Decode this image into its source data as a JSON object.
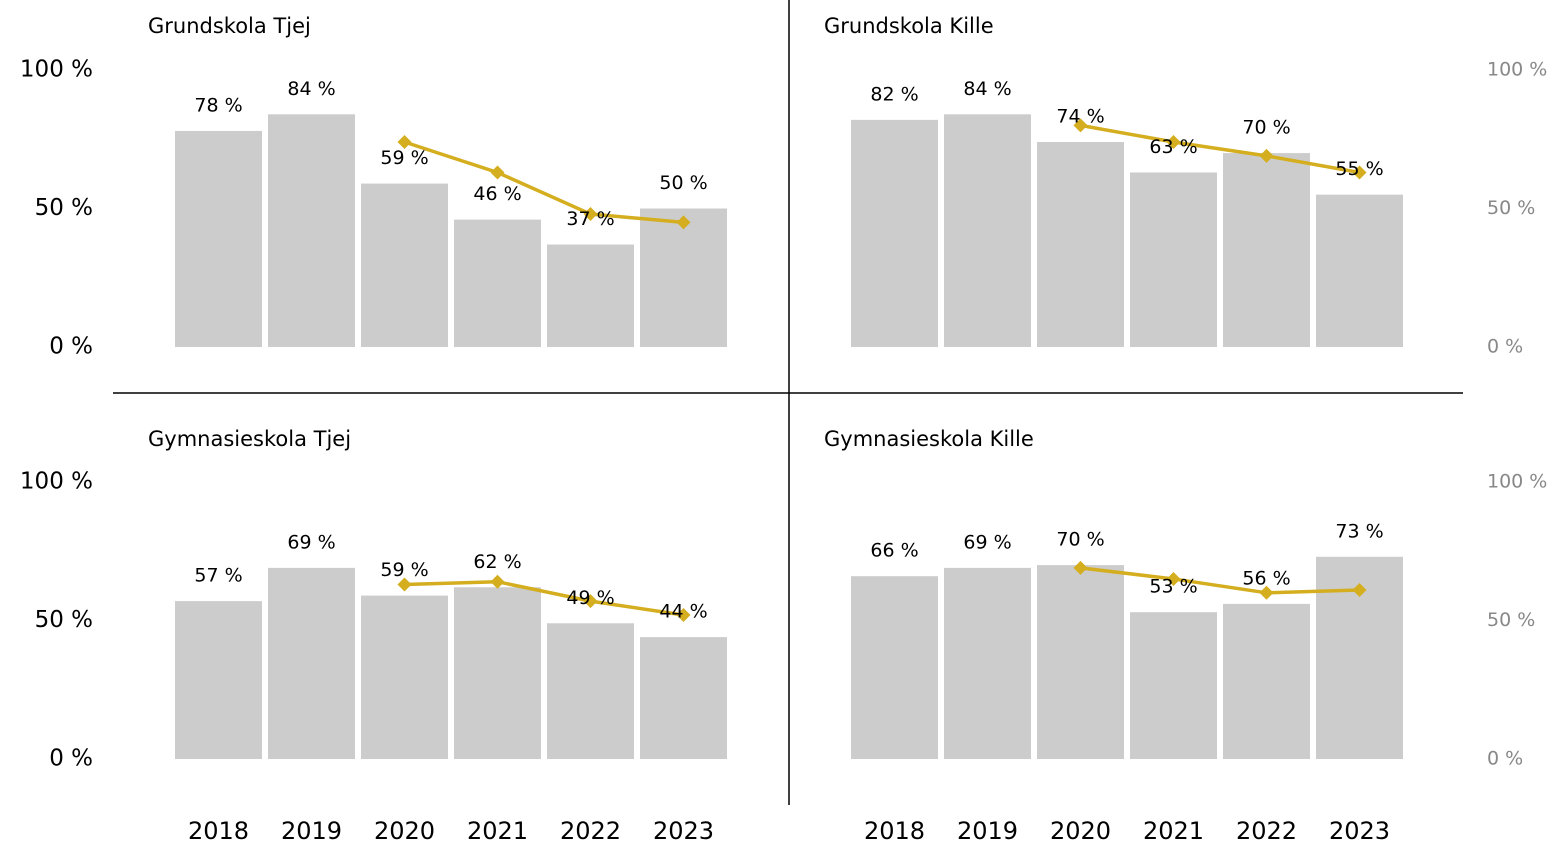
{
  "chart_data": [
    {
      "type": "bar",
      "title": "Grundskola Tjej",
      "values": [
        78,
        84,
        59,
        46,
        37,
        50
      ],
      "value_labels": [
        "78 %",
        "84 %",
        "59 %",
        "46 %",
        "37 %",
        "50 %"
      ],
      "color": "#cccccc",
      "line_values": [
        null,
        null,
        74,
        63,
        48,
        45
      ],
      "line_color": "#d4ae1e",
      "ylim": [
        0,
        100
      ],
      "yticks": [
        {
          "value": 0,
          "label": "0 %"
        },
        {
          "value": 50,
          "label": "50 %"
        },
        {
          "value": 100,
          "label": "100 %"
        }
      ],
      "yaxis_position": "left",
      "ytick_color": "#000000"
    },
    {
      "type": "bar",
      "title": "Grundskola Kille",
      "values": [
        82,
        84,
        74,
        63,
        70,
        55
      ],
      "value_labels": [
        "82 %",
        "84 %",
        "74 %",
        "63 %",
        "70 %",
        "55 %"
      ],
      "color": "#cccccc",
      "line_values": [
        null,
        null,
        80,
        74,
        69,
        63
      ],
      "line_color": "#d4ae1e",
      "ylim": [
        0,
        100
      ],
      "yticks": [
        {
          "value": 0,
          "label": "0 %"
        },
        {
          "value": 50,
          "label": "50 %"
        },
        {
          "value": 100,
          "label": "100 %"
        }
      ],
      "yaxis_position": "right",
      "ytick_color": "#888888"
    },
    {
      "type": "bar",
      "title": "Gymnasieskola Tjej",
      "categories": [
        "2018",
        "2019",
        "2020",
        "2021",
        "2022",
        "2023"
      ],
      "values": [
        57,
        69,
        59,
        62,
        49,
        44
      ],
      "value_labels": [
        "57 %",
        "69 %",
        "59 %",
        "62 %",
        "49 %",
        "44 %"
      ],
      "color": "#cccccc",
      "line_values": [
        null,
        null,
        63,
        64,
        57,
        52
      ],
      "line_color": "#d4ae1e",
      "ylim": [
        0,
        100
      ],
      "yticks": [
        {
          "value": 0,
          "label": "0 %"
        },
        {
          "value": 50,
          "label": "50 %"
        },
        {
          "value": 100,
          "label": "100 %"
        }
      ],
      "yaxis_position": "left",
      "ytick_color": "#000000"
    },
    {
      "type": "bar",
      "title": "Gymnasieskola Kille",
      "categories": [
        "2018",
        "2019",
        "2020",
        "2021",
        "2022",
        "2023"
      ],
      "values": [
        66,
        69,
        70,
        53,
        56,
        73
      ],
      "value_labels": [
        "66 %",
        "69 %",
        "70 %",
        "53 %",
        "56 %",
        "73 %"
      ],
      "color": "#cccccc",
      "line_values": [
        null,
        null,
        69,
        65,
        60,
        61
      ],
      "line_color": "#d4ae1e",
      "ylim": [
        0,
        100
      ],
      "yticks": [
        {
          "value": 0,
          "label": "0 %"
        },
        {
          "value": 50,
          "label": "50 %"
        },
        {
          "value": 100,
          "label": "100 %"
        }
      ],
      "yaxis_position": "right",
      "ytick_color": "#888888"
    }
  ]
}
